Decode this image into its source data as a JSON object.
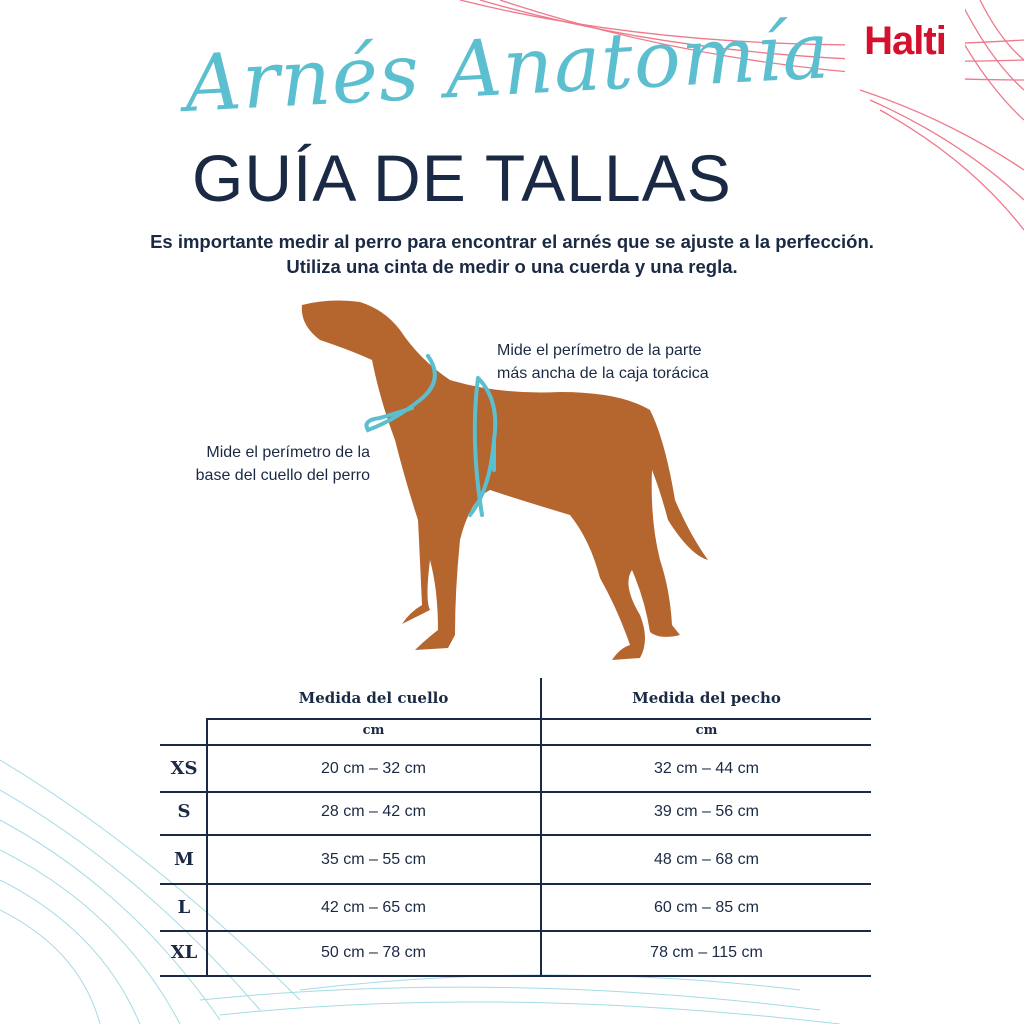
{
  "brand": {
    "logo": "Halti",
    "color": "#d4102c"
  },
  "header": {
    "script_title": "Arnés Anatomía",
    "title": "GUÍA DE TALLAS"
  },
  "intro": {
    "line1": "Es importante medir al perro para encontrar el arnés que se ajuste a la perfección.",
    "line2": "Utiliza una cinta de medir o una cuerda y una regla."
  },
  "annotations": {
    "chest_line1": "Mide el perímetro de la parte",
    "chest_line2": "más ancha de la caja torácica",
    "neck_line1": "Mide el perímetro de la",
    "neck_line2": "base del cuello del perro"
  },
  "colors": {
    "navy": "#1b2a44",
    "teal": "#5bbfd0",
    "red": "#d4102c",
    "dog": "#b5652e"
  },
  "table": {
    "headers": [
      "Medida del cuello",
      "Medida del pecho"
    ],
    "units": [
      "cm",
      "cm"
    ],
    "rows": [
      {
        "size": "XS",
        "neck": "20 cm – 32 cm",
        "chest": "32 cm – 44 cm"
      },
      {
        "size": "S",
        "neck": "28 cm – 42 cm",
        "chest": "39 cm – 56 cm"
      },
      {
        "size": "M",
        "neck": "35 cm – 55 cm",
        "chest": "48 cm – 68 cm"
      },
      {
        "size": "L",
        "neck": "42 cm – 65 cm",
        "chest": "60 cm – 85 cm"
      },
      {
        "size": "XL",
        "neck": "50 cm – 78 cm",
        "chest": "78 cm – 115 cm"
      }
    ]
  }
}
